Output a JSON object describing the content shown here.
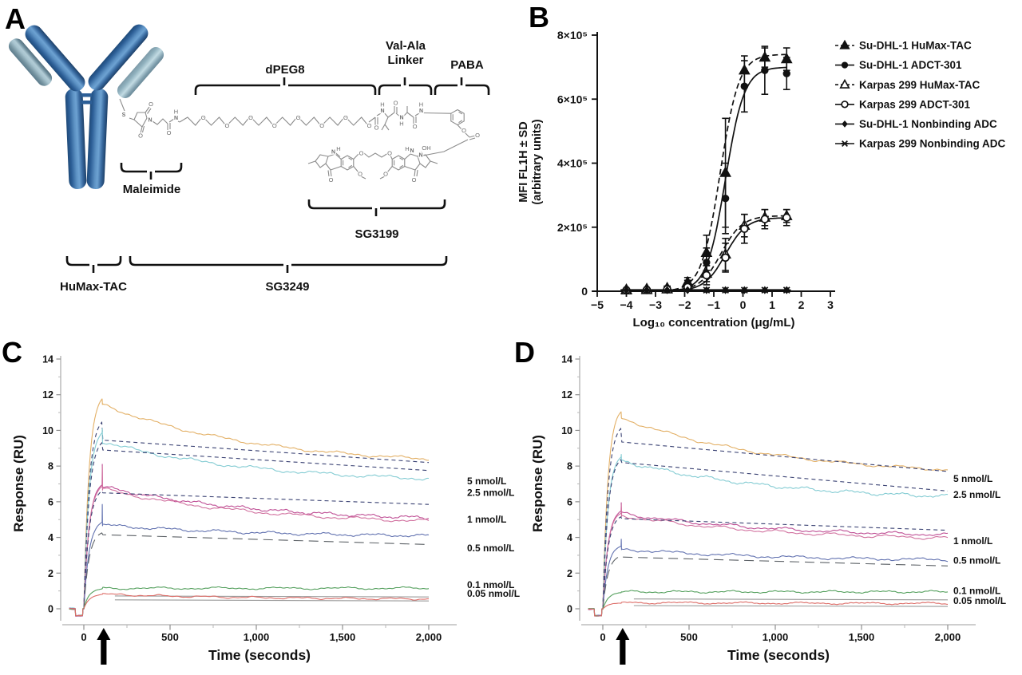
{
  "panel_letters": {
    "a": "A",
    "b": "B",
    "c": "C",
    "d": "D"
  },
  "panelA": {
    "labels": {
      "dpeg8": "dPEG8",
      "val_ala1": "Val-Ala",
      "val_ala2": "Linker",
      "paba": "PABA",
      "maleimide": "Maleimide",
      "sg3199": "SG3199",
      "humax": "HuMax-TAC",
      "sg3249": "SG3249"
    }
  },
  "chart_data": [
    {
      "id": "panel-b",
      "type": "scatter",
      "xlabel": "Log₁₀ concentration (μg/mL)",
      "ylabel_line1": "MFI FL1H ± SD",
      "ylabel_line2": "(arbitrary units)",
      "xlim": [
        -5,
        3
      ],
      "ylim": [
        0,
        800000
      ],
      "y_unit": 100000,
      "xticks": [
        -5,
        -4,
        -3,
        -2,
        -1,
        0,
        1,
        2,
        3
      ],
      "xtick_labels": [
        "−5",
        "−4",
        "−3",
        "−2",
        "−1",
        "0",
        "1",
        "2",
        "3"
      ],
      "yticks": [
        0,
        2,
        4,
        6,
        8
      ],
      "ytick_labels": [
        "0",
        "2×10⁵",
        "4×10⁵",
        "6×10⁵",
        "8×10⁵"
      ],
      "x": [
        -4,
        -3.3,
        -2.6,
        -1.9,
        -1.25,
        -0.6,
        0.05,
        0.75,
        1.5
      ],
      "series": [
        {
          "name": "Su-DHL-1 HuMax-TAC",
          "marker": "tri-filled",
          "line": "dashed",
          "y": [
            0.05,
            0.07,
            0.1,
            0.28,
            1.2,
            3.7,
            6.9,
            7.3,
            7.25
          ],
          "err": [
            0.04,
            0.04,
            0.06,
            0.15,
            0.55,
            1.7,
            0.45,
            0.3,
            0.35
          ],
          "curve": {
            "top": 7.4,
            "ec50": -0.78,
            "hill": 1.35
          }
        },
        {
          "name": "Su-DHL-1 ADCT-301",
          "marker": "circle-filled",
          "line": "solid",
          "y": [
            0.05,
            0.06,
            0.09,
            0.22,
            0.9,
            2.9,
            6.4,
            6.9,
            6.8
          ],
          "err": [
            0.04,
            0.04,
            0.05,
            0.12,
            0.45,
            1.1,
            0.8,
            0.75,
            0.5
          ],
          "curve": {
            "top": 7.0,
            "ec50": -0.6,
            "hill": 1.35
          }
        },
        {
          "name": "Karpas 299 HuMax-TAC",
          "marker": "tri-open",
          "line": "dashed",
          "y": [
            0.03,
            0.04,
            0.06,
            0.15,
            0.55,
            1.15,
            2.05,
            2.3,
            2.35
          ],
          "err": [
            0.03,
            0.03,
            0.04,
            0.1,
            0.25,
            0.5,
            0.35,
            0.25,
            0.2
          ],
          "curve": {
            "top": 2.36,
            "ec50": -0.75,
            "hill": 1.2
          }
        },
        {
          "name": "Karpas 299 ADCT-301",
          "marker": "circle-open",
          "line": "solid",
          "y": [
            0.03,
            0.04,
            0.06,
            0.13,
            0.5,
            1.05,
            1.95,
            2.25,
            2.3
          ],
          "err": [
            0.03,
            0.03,
            0.04,
            0.1,
            0.3,
            0.45,
            0.45,
            0.3,
            0.25
          ],
          "curve": {
            "top": 2.3,
            "ec50": -0.6,
            "hill": 1.2
          }
        },
        {
          "name": "Su-DHL-1 Nonbinding ADC",
          "marker": "diamond-filled",
          "line": "solid",
          "y": [
            0.035,
            0.035,
            0.035,
            0.035,
            0.035,
            0.035,
            0.035,
            0.035,
            0.035
          ],
          "err": [
            0,
            0,
            0,
            0,
            0,
            0,
            0,
            0,
            0
          ],
          "curve": {
            "flat": 0.035
          }
        },
        {
          "name": "Karpas 299 Nonbinding ADC",
          "marker": "burst",
          "line": "solid",
          "marker_from": 4,
          "y": [
            0.035,
            0.035,
            0.035,
            0.035,
            0.035,
            0.035,
            0.035,
            0.035,
            0.035
          ],
          "err": [
            0,
            0,
            0,
            0,
            0,
            0,
            0,
            0,
            0
          ],
          "curve": {
            "flat": 0.035
          }
        }
      ],
      "legend": [
        {
          "marker": "tri-filled",
          "line": "dashed",
          "label": "Su-DHL-1 HuMax-TAC"
        },
        {
          "marker": "circle-filled",
          "line": "solid",
          "label": "Su-DHL-1 ADCT-301"
        },
        {
          "marker": "tri-open",
          "line": "dashed",
          "label": "Karpas 299 HuMax-TAC"
        },
        {
          "marker": "circle-open",
          "line": "solid",
          "label": "Karpas 299 ADCT-301"
        },
        {
          "marker": "diamond-filled",
          "line": "solid",
          "label": "Su-DHL-1 Nonbinding ADC"
        },
        {
          "marker": "burst",
          "line": "solid",
          "label": "Karpas 299 Nonbinding ADC"
        }
      ]
    },
    {
      "id": "panel-c",
      "type": "line",
      "xlabel": "Time (seconds)",
      "ylabel": "Response (RU)",
      "xlim": [
        -100,
        2050
      ],
      "ylim": [
        0,
        14
      ],
      "xticks": [
        0,
        500,
        1000,
        1500,
        2000
      ],
      "xtick_labels": [
        "0",
        "500",
        "1,000",
        "1,500",
        "2,000"
      ],
      "yticks": [
        0,
        2,
        4,
        6,
        8,
        10,
        12,
        14
      ],
      "arrow_t": 115,
      "geom": {
        "x0": 105,
        "x1": 537,
        "plot_left": 78,
        "plot_right": 572,
        "yaxis_x": 76,
        "label_x": 585,
        "mid_x": 325
      },
      "series": [
        {
          "label": "5 nmol/L",
          "color": "#e3b066",
          "apeak": 11.75,
          "spike": 0,
          "dstart": 11.45,
          "dend": 8.4,
          "noise": 0.1,
          "label_ru": 7.15,
          "fit": {
            "rise": 1,
            "fpeak": 10.45,
            "fstart": 9.45,
            "fend": 8.2,
            "dash": "5,4",
            "color": "#3a4273"
          }
        },
        {
          "label": "2.5 nmol/L",
          "color": "#84ccd3",
          "apeak": 9.9,
          "spike": 10.1,
          "dstart": 9.35,
          "dend": 7.3,
          "noise": 0.12,
          "label_ru": 6.5,
          "fit": {
            "rise": 1,
            "fpeak": 9.3,
            "fstart": 8.9,
            "fend": 7.75,
            "dash": "5,4",
            "color": "#3a4273"
          }
        },
        {
          "label": "1 nmol/L",
          "color": "#bf4f95",
          "color2": "#d1719f",
          "dup": 1,
          "apeak": 6.95,
          "spike": 8.1,
          "dstart": 6.85,
          "dend": 5.1,
          "noise": 0.11,
          "label_ru": 5.0,
          "fit": {
            "rise": 1,
            "fpeak": 6.6,
            "fstart": 6.5,
            "fend": 5.85,
            "dash": "5,4",
            "color": "#3a4273"
          }
        },
        {
          "label": "0.5 nmol/L",
          "color": "#6272b0",
          "apeak": 4.85,
          "spike": 5.85,
          "dstart": 4.7,
          "dend": 4.1,
          "noise": 0.1,
          "label_ru": 3.4,
          "fit": {
            "rise": 1,
            "fpeak": 4.25,
            "fstart": 4.15,
            "fend": 3.6,
            "dash": "12,7",
            "color": "#5c6166"
          }
        },
        {
          "label": "0.1 nmol/L",
          "color": "#55a05e",
          "apeak": 1.1,
          "spike": 0,
          "dstart": 1.15,
          "dend": 1.15,
          "noise": 0.08,
          "label_ru": 1.35,
          "fit": {
            "rise": 0,
            "fstart": 0.72,
            "fend": 0.66,
            "dash": "",
            "color": "#9a9a9a"
          }
        },
        {
          "label": "0.05 nmol/L",
          "color": "#dd6d68",
          "apeak": 0.8,
          "spike": 0,
          "dstart": 0.82,
          "dend": 0.55,
          "noise": 0.07,
          "label_ru": 0.85,
          "fit": {
            "rise": 0,
            "fstart": 0.5,
            "fend": 0.44,
            "dash": "",
            "color": "#9a9a9a"
          }
        }
      ]
    },
    {
      "id": "panel-d",
      "type": "line",
      "xlabel": "Time (seconds)",
      "ylabel": "Response (RU)",
      "xlim": [
        -100,
        2050
      ],
      "ylim": [
        0,
        14
      ],
      "xticks": [
        0,
        500,
        1000,
        1500,
        2000
      ],
      "xtick_labels": [
        "0",
        "500",
        "1,000",
        "1,500",
        "2,000"
      ],
      "yticks": [
        0,
        2,
        4,
        6,
        8,
        10,
        12,
        14
      ],
      "arrow_t": 115,
      "geom": {
        "x0": 755,
        "x1": 1187,
        "plot_left": 728,
        "plot_right": 1222,
        "yaxis_x": 726,
        "label_x": 1194,
        "mid_x": 975
      },
      "series": [
        {
          "label": "5 nmol/L",
          "color": "#e3b066",
          "apeak": 11.05,
          "spike": 0,
          "dstart": 10.7,
          "dend": 7.8,
          "noise": 0.1,
          "label_ru": 7.3,
          "fit": {
            "rise": 1,
            "fpeak": 10.1,
            "fstart": 9.35,
            "fend": 7.7,
            "dash": "5,4",
            "color": "#3a4273"
          }
        },
        {
          "label": "2.5 nmol/L",
          "color": "#84ccd3",
          "apeak": 8.5,
          "spike": 8.65,
          "dstart": 8.3,
          "dend": 6.3,
          "noise": 0.12,
          "label_ru": 6.4,
          "fit": {
            "rise": 1,
            "fpeak": 8.35,
            "fstart": 8.2,
            "fend": 6.6,
            "dash": "5,4",
            "color": "#3a4273"
          }
        },
        {
          "label": "1 nmol/L",
          "color": "#bf4f95",
          "color2": "#d1719f",
          "dup": 1,
          "apeak": 5.45,
          "spike": 5.95,
          "dstart": 5.35,
          "dend": 4.15,
          "noise": 0.11,
          "label_ru": 3.8,
          "fit": {
            "rise": 1,
            "fpeak": 5.15,
            "fstart": 5.05,
            "fend": 4.4,
            "dash": "5,4",
            "color": "#3a4273"
          }
        },
        {
          "label": "0.5 nmol/L",
          "color": "#6272b0",
          "apeak": 3.5,
          "spike": 3.9,
          "dstart": 3.35,
          "dend": 2.75,
          "noise": 0.1,
          "label_ru": 2.7,
          "fit": {
            "rise": 1,
            "fpeak": 2.95,
            "fstart": 2.9,
            "fend": 2.4,
            "dash": "12,7",
            "color": "#5c6166"
          }
        },
        {
          "label": "0.1 nmol/L",
          "color": "#55a05e",
          "apeak": 0.9,
          "spike": 0,
          "dstart": 0.95,
          "dend": 0.95,
          "noise": 0.08,
          "label_ru": 1.0,
          "fit": {
            "rise": 0,
            "fstart": 0.55,
            "fend": 0.5,
            "dash": "",
            "color": "#9a9a9a"
          }
        },
        {
          "label": "0.05 nmol/L",
          "color": "#dd6d68",
          "apeak": 0.3,
          "spike": 0,
          "dstart": 0.35,
          "dend": 0.3,
          "noise": 0.07,
          "label_ru": 0.45,
          "fit": {
            "rise": 0,
            "fstart": 0.18,
            "fend": 0.13,
            "dash": "",
            "color": "#9a9a9a"
          }
        }
      ]
    }
  ]
}
